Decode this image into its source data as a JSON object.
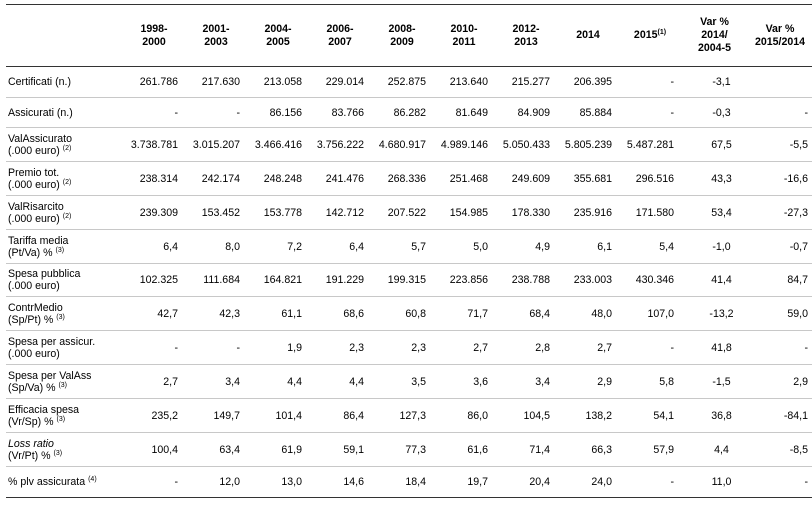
{
  "headers": [
    "",
    "1998-\n2000",
    "2001-\n2003",
    "2004-\n2005",
    "2006-\n2007",
    "2008-\n2009",
    "2010-\n2011",
    "2012-\n2013",
    "2014",
    "2015",
    "Var %\n2014/\n2004-5",
    "Var %\n2015/2014"
  ],
  "header_2015_sup": "(1)",
  "rows": [
    {
      "l1": "Certificati (n.)",
      "l2": "",
      "sup": "",
      "italic": false,
      "h": 31,
      "cells": [
        "261.786",
        "217.630",
        "213.058",
        "229.014",
        "252.875",
        "213.640",
        "215.277",
        "206.395",
        "-",
        "-3,1",
        ""
      ]
    },
    {
      "l1": "Assicurati (n.)",
      "l2": "",
      "sup": "",
      "italic": false,
      "h": 30,
      "cells": [
        "-",
        "-",
        "86.156",
        "83.766",
        "86.282",
        "81.649",
        "84.909",
        "85.884",
        "-",
        "-0,3",
        "-"
      ]
    },
    {
      "l1": "ValAssicurato",
      "l2": "(.000 euro)",
      "sup": "(2)",
      "italic": false,
      "h": 34,
      "cells": [
        "3.738.781",
        "3.015.207",
        "3.466.416",
        "3.756.222",
        "4.680.917",
        "4.989.146",
        "5.050.433",
        "5.805.239",
        "5.487.281",
        "67,5",
        "-5,5"
      ]
    },
    {
      "l1": "Premio tot.",
      "l2": "(.000 euro)",
      "sup": "(2)",
      "italic": false,
      "h": 34,
      "cells": [
        "238.314",
        "242.174",
        "248.248",
        "241.476",
        "268.336",
        "251.468",
        "249.609",
        "355.681",
        "296.516",
        "43,3",
        "-16,6"
      ]
    },
    {
      "l1": "ValRisarcito",
      "l2": "(.000 euro)",
      "sup": "(2)",
      "italic": false,
      "h": 34,
      "cells": [
        "239.309",
        "153.452",
        "153.778",
        "142.712",
        "207.522",
        "154.985",
        "178.330",
        "235.916",
        "171.580",
        "53,4",
        "-27,3"
      ]
    },
    {
      "l1": "Tariffa media",
      "l2": "(Pt/Va) %",
      "sup": "(3)",
      "italic": false,
      "h": 34,
      "cells": [
        "6,4",
        "8,0",
        "7,2",
        "6,4",
        "5,7",
        "5,0",
        "4,9",
        "6,1",
        "5,4",
        "-1,0",
        "-0,7"
      ]
    },
    {
      "l1": "Spesa pubblica",
      "l2": "(.000 euro)",
      "sup": "",
      "italic": false,
      "h": 33,
      "cells": [
        "102.325",
        "111.684",
        "164.821",
        "191.229",
        "199.315",
        "223.856",
        "238.788",
        "233.003",
        "430.346",
        "41,4",
        "84,7"
      ]
    },
    {
      "l1": "ContrMedio",
      "l2": "(Sp/Pt) %",
      "sup": "(3)",
      "italic": false,
      "h": 34,
      "cells": [
        "42,7",
        "42,3",
        "61,1",
        "68,6",
        "60,8",
        "71,7",
        "68,4",
        "48,0",
        "107,0",
        "-13,2",
        "59,0"
      ]
    },
    {
      "l1": "Spesa per assicur.",
      "l2": "(.000 euro)",
      "sup": "",
      "italic": false,
      "h": 34,
      "cells": [
        "-",
        "-",
        "1,9",
        "2,3",
        "2,3",
        "2,7",
        "2,8",
        "2,7",
        "-",
        "41,8",
        "-"
      ]
    },
    {
      "l1": "Spesa per ValAss",
      "l2": "(Sp/Va) %",
      "sup": "(3)",
      "italic": false,
      "h": 34,
      "cells": [
        "2,7",
        "3,4",
        "4,4",
        "4,4",
        "3,5",
        "3,6",
        "3,4",
        "2,9",
        "5,8",
        "-1,5",
        "2,9"
      ]
    },
    {
      "l1": "Efficacia spesa",
      "l2": "(Vr/Sp) %",
      "sup": "(3)",
      "italic": false,
      "h": 34,
      "cells": [
        "235,2",
        "149,7",
        "101,4",
        "86,4",
        "127,3",
        "86,0",
        "104,5",
        "138,2",
        "54,1",
        "36,8",
        "-84,1"
      ]
    },
    {
      "l1": "Loss ratio",
      "l2": "(Vr/Pt) %",
      "sup": "(3)",
      "italic": true,
      "h": 34,
      "cells": [
        "100,4",
        "63,4",
        "61,9",
        "59,1",
        "77,3",
        "61,6",
        "71,4",
        "66,3",
        "57,9",
        "4,4",
        "-8,5"
      ]
    },
    {
      "l1": "% plv assicurata",
      "l2": "",
      "sup": "(4)",
      "italic": false,
      "h": 31,
      "cells": [
        "-",
        "12,0",
        "13,0",
        "14,6",
        "18,4",
        "19,7",
        "20,4",
        "24,0",
        "-",
        "11,0",
        "-"
      ]
    }
  ]
}
